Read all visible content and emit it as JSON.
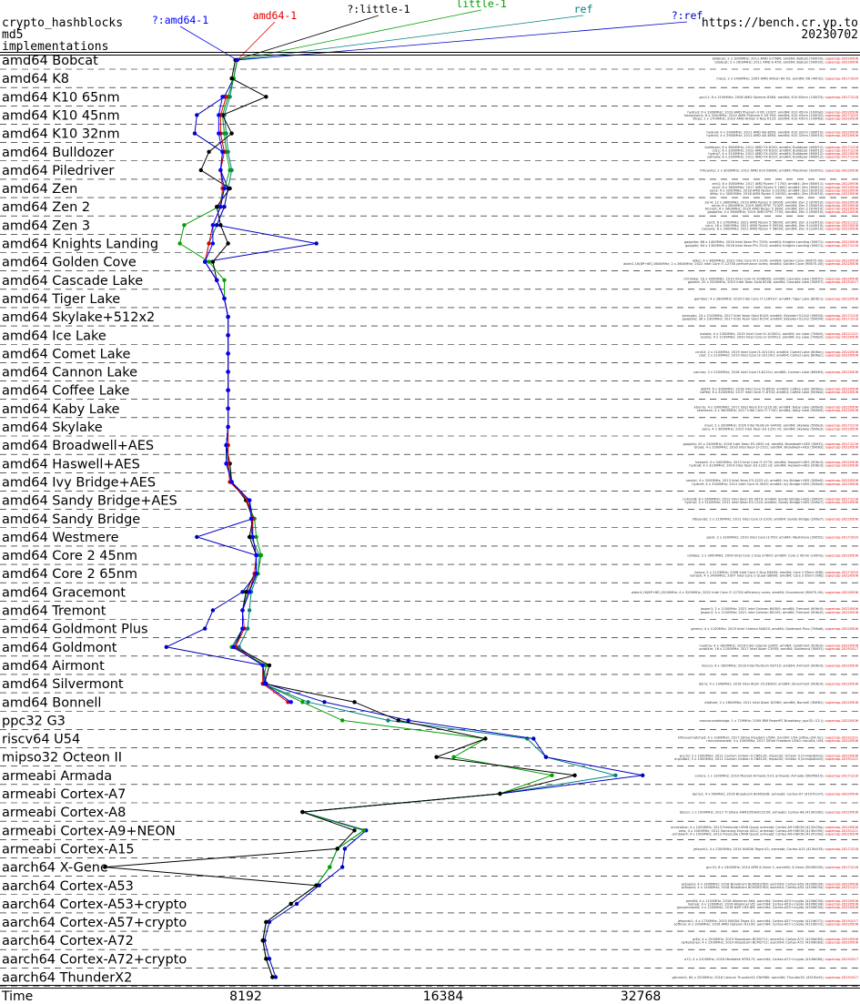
{
  "header": {
    "title_line1": "crypto_hashblocks",
    "title_line2": "md5",
    "title_line3": "implementations",
    "site": "https://bench.cr.yp.to",
    "date": "20230702"
  },
  "chart_data": {
    "type": "line",
    "xlabel": "Time",
    "x_scale": "log2",
    "xticks": [
      8192,
      16384,
      32768
    ],
    "xticks_labels": [
      "8192",
      "16384",
      "32768"
    ],
    "grid": "dashed row separators",
    "categories": [
      "amd64 Bobcat",
      "amd64 K8",
      "amd64 K10 65nm",
      "amd64 K10 45nm",
      "amd64 K10 32nm",
      "amd64 Bulldozer",
      "amd64 Piledriver",
      "amd64 Zen",
      "amd64 Zen 2",
      "amd64 Zen 3",
      "amd64 Knights Landing",
      "amd64 Golden Cove",
      "amd64 Cascade Lake",
      "amd64 Tiger Lake",
      "amd64 Skylake+512x2",
      "amd64 Ice Lake",
      "amd64 Comet Lake",
      "amd64 Cannon Lake",
      "amd64 Coffee Lake",
      "amd64 Kaby Lake",
      "amd64 Skylake",
      "amd64 Broadwell+AES",
      "amd64 Haswell+AES",
      "amd64 Ivy Bridge+AES",
      "amd64 Sandy Bridge+AES",
      "amd64 Sandy Bridge",
      "amd64 Westmere",
      "amd64 Core 2 45nm",
      "amd64 Core 2 65nm",
      "amd64 Gracemont",
      "amd64 Tremont",
      "amd64 Goldmont Plus",
      "amd64 Goldmont",
      "amd64 Airmont",
      "amd64 Silvermont",
      "amd64 Bonnell",
      "ppc32 G3",
      "riscv64 U54",
      "mipso32 Octeon II",
      "armeabi Armada",
      "armeabi Cortex-A7",
      "armeabi Cortex-A8",
      "armeabi Cortex-A9+NEON",
      "armeabi Cortex-A15",
      "aarch64 X-Gene",
      "aarch64 Cortex-A53",
      "aarch64 Cortex-A53+crypto",
      "aarch64 Cortex-A57+crypto",
      "aarch64 Cortex-A72",
      "aarch64 Cortex-A72+crypto",
      "aarch64 ThunderX2"
    ],
    "series": [
      {
        "name": "ref",
        "color": "#008080",
        "values": [
          7950,
          7850,
          7750,
          7600,
          7650,
          7700,
          7800,
          7700,
          7600,
          7400,
          7200,
          7100,
          7400,
          7600,
          7700,
          7700,
          7700,
          7700,
          7700,
          7700,
          7700,
          7700,
          7700,
          7750,
          8300,
          8400,
          8350,
          8600,
          8550,
          8350,
          8300,
          8250,
          8000,
          8700,
          8700,
          10200,
          13500,
          22000,
          23500,
          30000,
          20000,
          10000,
          12400,
          11300,
          11000,
          10500,
          9600,
          8800,
          8700,
          8800,
          9000
        ]
      },
      {
        "name": "?:ref",
        "color": "#0000c0",
        "values": [
          7950,
          7850,
          7600,
          6900,
          6850,
          7550,
          7500,
          7700,
          7600,
          7400,
          10500,
          7100,
          7400,
          7600,
          7700,
          7700,
          7700,
          7700,
          7700,
          7700,
          7700,
          7650,
          7650,
          7800,
          8300,
          8400,
          6900,
          8500,
          8500,
          8100,
          7300,
          7100,
          6200,
          8700,
          8800,
          10800,
          14500,
          22500,
          23500,
          33000,
          20000,
          10000,
          12500,
          11600,
          11500,
          10600,
          9800,
          8900,
          8750,
          8900,
          9100
        ]
      },
      {
        "name": "little-1",
        "color": "#00a000",
        "values": [
          7950,
          7850,
          7700,
          7550,
          7600,
          7650,
          7750,
          7600,
          7450,
          6600,
          6500,
          7200,
          7600,
          7600,
          7700,
          7700,
          7700,
          7700,
          7700,
          7700,
          7700,
          7650,
          7700,
          7800,
          8200,
          8450,
          8500,
          8650,
          8550,
          8250,
          8100,
          8100,
          7800,
          8800,
          8700,
          10000,
          11500,
          19000,
          17000,
          24000,
          20000,
          10000,
          12400,
          11300,
          11000,
          10500,
          9600,
          8800,
          8700,
          8800,
          9000
        ]
      },
      {
        "name": "?:little-1",
        "color": "#000000",
        "values": [
          7900,
          7800,
          8800,
          7550,
          7800,
          7200,
          7000,
          7750,
          7400,
          7500,
          7700,
          7300,
          7400,
          7600,
          7700,
          7700,
          7700,
          7700,
          7700,
          7700,
          7700,
          7650,
          7750,
          7800,
          8200,
          8400,
          8300,
          8500,
          8450,
          8200,
          8100,
          8100,
          7900,
          8900,
          8750,
          12000,
          14000,
          19000,
          16000,
          26000,
          20000,
          10000,
          12000,
          11300,
          5000,
          10500,
          9600,
          8800,
          8700,
          8800,
          9000
        ]
      },
      {
        "name": "amd64-1",
        "color": "#e00000",
        "values": [
          7950,
          null,
          7650,
          7500,
          7500,
          7600,
          7500,
          7550,
          7500,
          7300,
          7200,
          7100,
          7400,
          7600,
          7700,
          7700,
          7700,
          7700,
          7700,
          7700,
          7700,
          7700,
          7700,
          7750,
          8250,
          8400,
          8400,
          8500,
          8450,
          8300,
          8100,
          8150,
          7900,
          8700,
          8700,
          9500,
          null,
          null,
          null,
          null,
          null,
          null,
          null,
          null,
          null,
          null,
          null,
          null,
          null,
          null,
          null
        ]
      },
      {
        "name": "?:amd64-1",
        "color": "#0000ff",
        "values": [
          7950,
          null,
          7550,
          7450,
          7450,
          7550,
          7500,
          7600,
          7500,
          7300,
          7300,
          7100,
          7400,
          7600,
          7700,
          7700,
          7700,
          7700,
          7700,
          7700,
          7700,
          7650,
          7650,
          7800,
          8300,
          8350,
          8400,
          8500,
          8500,
          8300,
          8100,
          8100,
          7850,
          8700,
          8750,
          9600,
          null,
          null,
          null,
          null,
          null,
          null,
          null,
          null,
          null,
          null,
          null,
          null,
          null,
          null,
          null
        ]
      }
    ],
    "machines": [
      [
        "bllobcat; 2 x 1000MHz; 2011 AMD G-T56N; amd64; Bobcat (500f20); supercop-20220506",
        "bllobcat; 2 x 1600MHz; 2011 AMD E-450; amd64; Bobcat (500f20); supercop-20220506"
      ],
      [
        "mace; 2 x 2400MHz; 2005 AMD Athlon 64 X2; amd64; K8 (40f32); supercop-20171020"
      ],
      [
        "gcc11; 8 x 2194MHz; 2008 AMD Opteron 8384; amd64; K10 65nm (100f23); supercop-20171218"
      ],
      [
        "hydra3; 6 x 3300MHz; 2010 AMD Phenom II X6 1100T; amd64; K10 45nm (100fa0); supercop-20220506",
        "hexaphonic; 6 x 3200MHz; 2010 AMD Phenom II X4 955; amd64; K10 45nm (100f42); supercop-20171020",
        "lilbes; 1 x 1700MHz; 2010 AMD Athlon II Neo K125; amd64; K10 45nm (100f63); supercop-20220506"
      ],
      [
        "hydra4; 4 x 2900MHz; 2011 AMD A8-3850; amd64; K10 32nm (300f10); supercop-20220506",
        "hydra5; 4 x 2900MHz; 2011 AMD A8-3850; amd64; K10 32nm (300f10); supercop-20220506"
      ],
      [
        "bulldozer; 8 x 3600MHz; 2011 AMD FX-8150; amd64; Bulldozer (600f12); supercop-20171218",
        "cdc1; 6 x 3300MHz; 2012 AMD FX-6100; amd64; Bulldozer (600f12); supercop-20171218",
        "hydra7; 4 x 3100MHz; 2011 AMD FX-4100; amd64; Bulldozer (600f12); supercop-20220506",
        "valhalla; 8 x 3300MHz; 2011 AMD FX-8120; amd64; Bulldozer (600f12); supercop-20171218"
      ],
      [
        "hfhcavity; 2 x 3000MHz; 2012 AMD A10-5800K; amd64; Piledriver (610f01); supercop-20220506"
      ],
      [
        "zen1; 8 x 3000MHz; 2017 AMD Ryzen 7 1700; amd64; Zen (800f11); supercop-20220506",
        "zen2; 8 x 3600MHz; 2017 AMD Ryzen 5 1600; amd64; Zen (800f11); supercop-20220506",
        "zen3; 4 x 3200MHz; 2018 AMD Ryzen 3 2200G; amd64; Zen (810f10); supercop-20220506",
        "ditto; 4 x 3000MHz; 2018 AMD Ryzen 5 2400G; amd64; Zen (810f10); supercop-20220506"
      ],
      [
        "zen4; 12 x 3800MHz; 2019 AMD Ryzen 9 3900X; amd64; Zen 2 (870f10); supercop-20220506",
        "rome; 8 x 2800MHz; 2019 AMD EPYC 7232P; amd64; Zen 2 (830f10); supercop-20220506",
        "lilcoreit; 8 x 3600MHz; 2020 AMD Ryzen 5 3600; amd64; Zen 2 (870f10); supercop-20220506",
        "gaajotho; 4 x 3600MHz; 2019 AMD EPYC 7702; amd64; Zen 2 (830f10); supercop-20220506"
      ],
      [
        "zen5; 6 x 3700MHz; 2021 AMD Ryzen 5 5600X; amd64; Zen 3 (a20f10); supercop-20221122",
        "cenr; 16 x 3400MHz; 2021 AMD Ryzen 9 5950X; amd64; Zen 3 (a20f10); supercop-20220506",
        "cassava; 8 x 3900MHz; 2021 AMD Ryzen 7 5800X; amd64; Zen 3 (a20f10); supercop-20220506"
      ],
      [
        "gaajolim; 68 x 1400MHz; 2016 Intel Xeon Phi 7250; amd64; Knights Landing (50671); supercop-20220506",
        "gaajolhi; 64 x 1300MHz; 2016 Intel Xeon Phi 7210; amd64; Knights Landing (50671); supercop-20171218"
      ],
      [
        "alder; 4 x 3600MHz; 2022 Intel Core i9-11100; amd64; Golden Cove (90675-00); supercop-20220506",
        "alder2,16(8P+8E),3600MHz; 2 x 3600MHz; 2022 Intel Core i7-12700 performance cores; amd64; Golden Cove (90675-00); supercop-20220506"
      ],
      [
        "cml3lake; 18 x 3000MHz; 2019 Intel Core i9-10980XE; amd64; Cascade Lake (50657); supercop-20220506",
        "gazelle; 20 x 2500MHz; 2019 Intel Xeon Gold 6248; amd64; Cascade Lake (50657); supercop-20191017"
      ],
      [
        "gambier; 4 x 2800MHz; 2020 Intel Core i7-1165G7; amd64; Tiger Lake (806c1); supercop-20220506"
      ],
      [
        "samsybc; 24 x 2100MHz; 2017 Intel Xeon Gold 6140; amd64; Skylake+512x2 (50654); supercop-20171218",
        "gaajasky; 36 x 2300MHz; 2017 Intel Xeon Gold 6154; amd64; Skylake+512x2 (50654); supercop-20171218"
      ],
      [
        "icelake; 4 x 1300MHz; 2019 Intel Core i5-1035G1; amd64; Ice Lake (706e5); supercop-20221122",
        "iceline; 4 x 1100MHz; 2020 Intel Core i3-1005G1; amd64; Ice Lake (706e5); supercop-20220506"
      ],
      [
        "cml10; 2 x 2100MHz; 2019 Intel Core i3-10110U; amd64; Comet Lake (806ec); supercop-20220506",
        "cool; 2 x 2100MHz; 2019 Intel Core i3-10110U; amd64; Comet Lake (806ec); supercop-20220506"
      ],
      [
        "cannon; 2 x 2200MHz; 2018 Intel Core i3-8121U; amd64; Cannon Lake (60663); supercop-20220506"
      ],
      [
        "pb8f3; 6 x 3000MHz; 2018 Intel Core i5-8500; amd64; Coffee Lake (906ea); supercop-20220506",
        "coffee; 6 x 3200MHz; 2017 Intel Core i7-8700; amd64; Coffee Lake (906ea); supercop-20220506"
      ],
      [
        "kbuntu; 4 x 3000MHz; 2017 Intel Xeon E3-1220 v6; amd64; Kaby Lake (906e9); supercop-20220506",
        "skenbeck; 4 x 3600MHz; 2017 Intel Core i7-7700; amd64; Kaby Lake (906e9); supercop-20220506"
      ],
      [
        "maxi; 2 x 3300MHz; 2020 Intel Pentium G4400; amd64; Skylake (506e3); supercop-20171218",
        "sabu; 4 x 3600MHz; 2015 Intel Xeon E3-1220 v5; amd64; Skylake (506e3); supercop-20220506"
      ],
      [
        "gaajolbi; 20 x 2400MHz; 2016 Intel Xeon E5-2620 v4; amd64; Broadwell+AES (406f1); supercop-20171218",
        "broad; 4 x 2000MHz; 2016 Intel Xeon D-1521; amd64; Broadwell+AES (50663); supercop-20220506"
      ],
      [
        "haswell; 4 x 3400MHz; 2013 Intel Core i7-4770; amd64; Haswell+AES (306c3); supercop-20220506",
        "hydra8; 4 x 3100MHz; 2014 Intel Xeon E3-1220 v3; amd64; Haswell+AES (306c3); supercop-20220506"
      ],
      [
        "sandyi; 4 x 3200MHz; 2013 Intel Xeon E3-1225 v2; amd64; Ivy Bridge+AES (306a9); supercop-20220506",
        "hydra9; 4 x 3300MHz; 2012 Intel Core i5-3550; amd64; Ivy Bridge+AES (306a9); supercop-20220506"
      ],
      [
        "cobra28; 8 x 2600MHz; 2012 Intel Xeon E5-2670; amd64; Sandy Bridge+AES (206d7); supercop-20171218",
        "hydra2; 4 x 3100MHz; 2011 Intel Xeon E3-1220; amd64; Sandy Bridge+AES (206a7); supercop-20220506"
      ],
      [
        "hfbsandy; 2 x 2100MHz; 2011 Intel Core i3-2100; amd64; Sandy Bridge (206a7); supercop-20220506"
      ],
      [
        "glym; 2 x 3200MHz; 2010 Intel Core i3-550; amd64; Westmere (20652); supercop-20171020"
      ],
      [
        "utilidex; 2 x 3000MHz; 2009 Intel Core 2 Duo E7600; amd64; Core 2 45nm (1067a); supercop-20220506"
      ],
      [
        "bosco; 2 x 2133MHz; 2008 Intel Core 2 Duo E6400; amd64; Core 2 65nm (6f6); supercop-20171020",
        "nohash; 4 x 2400MHz; 2007 Intel Core 2 Quad Q6600; amd64; Core 2 65nm (6fb); supercop-20220506"
      ],
      [
        "alder4,16(8P+8E),3200MHz; 4 x 3200MHz; 2022 Intel Core i7-12700 efficiency cores; amd64; Gracemont (90675-00); supercop-20220506"
      ],
      [
        "jasper1; 2 x 1100MHz; 2021 Intel Celeron N4500; amd64; Tremont (906c0); supercop-20220506",
        "jasper2; 4 x 1100MHz; 2021 Intel Celeron N5105; amd64; Tremont (906c0); supercop-20220506"
      ],
      [
        "gemini; 4 x 1100MHz; 2019 Intel Celeron N4020; amd64; Goldmont Plus (706a8); supercop-20220506"
      ],
      [
        "nuolma; 4 x 1600MHz; 2016 Intel Celeron J3455; amd64; Goldmont (506c9); supercop-20220506",
        "ucsbl4m; 16 x 2100MHz; 2017 Intel Atom C3955; amd64; Goldmont (506f1); supercop-20191017"
      ],
      [
        "mocco; 4 x 1600MHz; 2016 Intel Pentium N3710; amd64; Airmont (406c4); supercop-20220506"
      ],
      [
        "darry; 4 x 1340MHz; 2016 Intel Atom x5-Z8300; amd64; Silvermont (406c4); supercop-20220506"
      ],
      [
        "dlattom; 2 x 1600MHz; 2011 Intel Atom D2560; amd64; Bonnell (30661); supercop-20220506"
      ],
      [
        "macconcealedage; 1 x 729MHz; 2009 IBM PowerPC Broadway; ppc32; G3 (); supercop-20220506"
      ],
      [
        "hifiveunmatched; 4 x 1000MHz; 2017 SiFive Freedom U540; riscv64; U54 (sifive,u54-mc); supercop-20191221",
        "riscvunleashed; 4 x 1000MHz; 2017 SiFive Freedom U540; riscv64; U54; supercop-20220506"
      ],
      [
        "gcc10; 2 x 1000MHz; 2011 Cavium Octeon II CN6120; mipso32; Octeon II (cnmips64v2); supercop-20220506",
        "erpro8a2; 2 x 1000MHz; 2011 Cavium Octeon II CN6120; mipso32; Octeon II (cnmips64v2); supercop-20191221"
      ],
      [
        "cororo; 1 x 1200MHz; 2010 Marvell Armada 510; armeabi; Armada (560f5815); supercop-20171218"
      ],
      [
        "berry2; 4 x 900MHz; 2016 Broadcom BCM2836; armeabi; Cortex-A7 (41070c07); supercop-20220506"
      ],
      [
        "bbcon; 1 x 1000MHz; 2012 TI Sitara XAM3359AZCZ100; armeabi; Cortex-A8 (413fc082); supercop-20220506"
      ],
      [
        "arcocabox; 4 x 1000MHz; 2013 Freescale i.MX6 Quad; armeabi; Cortex-A9+NEON (412fc09a); supercop-20220506",
        "ares; 4 x 1000MHz; 2012 Samsung Exynos 4412; armeabi; Cortex-A9+NEON (413fc090); supercop-20191221",
        "armbian4; 4 x 1000MHz; 2012 Freescale i.MX6 Quad; armeabi; Cortex-A9+NEON (412fc09a); supercop-20220506"
      ],
      [
        "jetsonk1; 4 x 2300MHz; 2014 NVIDIA Tegra K1; armeabi; Cortex-A15 (413fc0f3); supercop-20171218"
      ],
      [
        "gcc15; 8 x 2400MHz; 2014 APM X-Gene 1; aarch64; X-Gene (500f0000); supercop-20171218"
      ],
      [
        "pi3aplus; 4 x 1400MHz; 2018 Broadcom BCM2837B0; aarch64; Cortex-A53 (410fd034); supercop-20220506",
        "pi3bplus; 4 x 1400MHz; 2018 Broadcom BCM2837B0; aarch64; Cortex-A53 (410fd034); supercop-20221122"
      ],
      [
        "pine64; 4 x 1152MHz; 2016 Allwinner A64; aarch64; Cortex-A53+crypto (410fd034); supercop-20220506",
        "hiphop; 4 x 1200MHz; 2016 Allwinner H5; aarch64; Cortex-A53+crypto (410fd034); supercop-20220506",
        "gongeraradat; 4 x 1200MHz; 2016 NXP i.MX 8M; aarch64; Cortex-A53+crypto (410fd034); supercop-20220506"
      ],
      [
        "jetsontx1; 4 x 1734MHz; 2015 NVIDIA Tegra X1; aarch64; Cortex-A57+crypto (411fd071); supercop-20191017",
        "softiron; 8 x 1000MHz; 2016 AMD Opteron A1100; aarch64; Cortex-A57+crypto (411fd072); supercop-20220506"
      ],
      [
        "pi4b; 4 x 1500MHz; 2019 Broadcom BCM2711; aarch64; Cortex-A72 (410fd083); supercop-20220506",
        "rpi4phonex; 4 x 1500MHz; 2019 Broadcom BCM2711; aarch64; Cortex-A72 (410fd083); supercop-20220506"
      ],
      [
        "a72; 4 x 2100MHz; 2018 Mediatek MT8173; aarch64; Cortex-A72+crypto (410fd080); supercop-20191017"
      ],
      [
        "gtmmlx2; 64 x 2500MHz; 2018 Cavium ThunderX2 CN9980; aarch64; ThunderX2 (431f0af1); supercop-20191017"
      ]
    ]
  }
}
